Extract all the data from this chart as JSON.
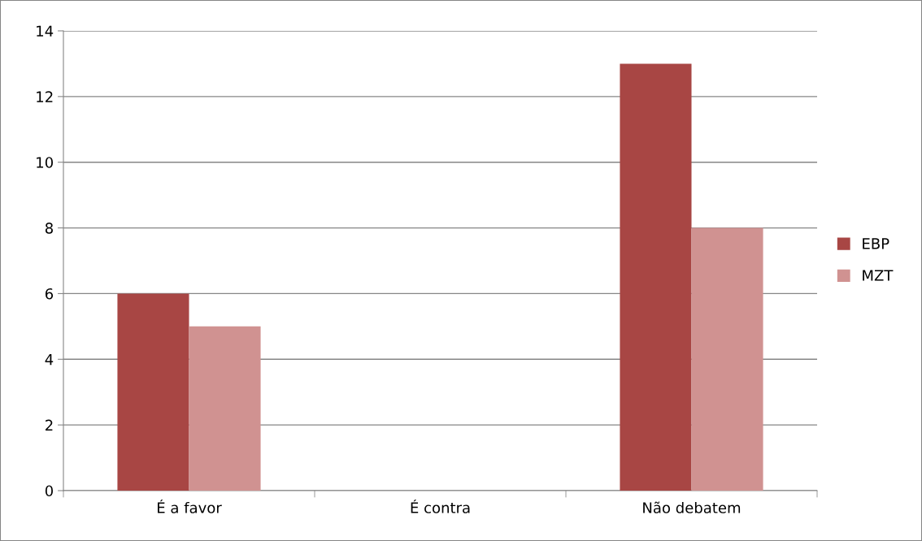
{
  "chart_data": {
    "type": "bar",
    "categories": [
      "É a favor",
      "É contra",
      "Não debatem"
    ],
    "series": [
      {
        "name": "EBP",
        "color": "#a84644",
        "values": [
          6,
          0,
          13
        ]
      },
      {
        "name": "MZT",
        "color": "#d09291",
        "values": [
          5,
          0,
          8
        ]
      }
    ],
    "ylim": [
      0,
      14
    ],
    "yticks": [
      0,
      2,
      4,
      6,
      8,
      10,
      12,
      14
    ],
    "grid": "y",
    "legend": "right"
  }
}
